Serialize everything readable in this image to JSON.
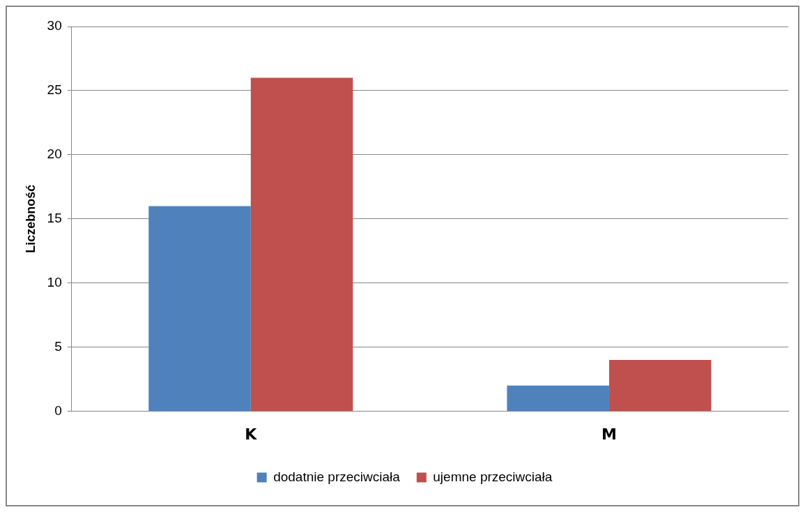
{
  "chart_data": {
    "type": "bar",
    "ylabel": "Liczebność",
    "categories": [
      "K",
      "M"
    ],
    "series": [
      {
        "name": "dodatnie przeciwciała",
        "color": "#4f81bd",
        "values": [
          16,
          2
        ]
      },
      {
        "name": "ujemne przeciwciała",
        "color": "#c0504d",
        "values": [
          26,
          4
        ]
      }
    ],
    "ylim": [
      0,
      30
    ],
    "yticks": [
      0,
      5,
      10,
      15,
      20,
      25,
      30
    ],
    "grid": "y",
    "legend": "bottom"
  }
}
